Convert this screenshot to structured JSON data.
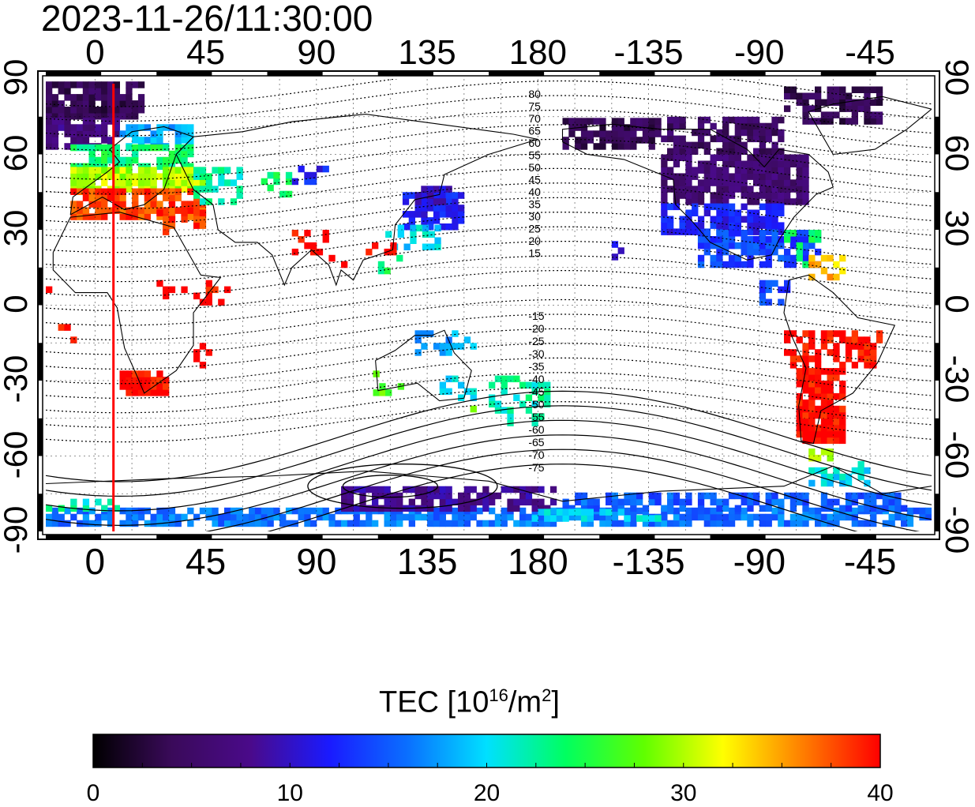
{
  "title": "2023-11-26/11:30:00",
  "map": {
    "lon_ticks_top": [
      "0",
      "45",
      "90",
      "135",
      "180",
      "-135",
      "-90",
      "-45"
    ],
    "lon_ticks_bottom": [
      "0",
      "45",
      "90",
      "135",
      "180",
      "-135",
      "-90",
      "-45"
    ],
    "lat_ticks_left": [
      "90",
      "60",
      "30",
      "0",
      "-30",
      "-60",
      "-90"
    ],
    "lat_ticks_right": [
      "90",
      "60",
      "30",
      "0",
      "-30",
      "-60",
      "-90"
    ],
    "lon_range": [
      -20,
      340
    ],
    "lat_range": [
      -90,
      90
    ],
    "grid": true,
    "subsolar_meridian_lon": 7.5,
    "contour_labels": [
      "80",
      "75",
      "70",
      "65",
      "60",
      "55",
      "50",
      "45",
      "40",
      "35",
      "30",
      "25",
      "20",
      "15",
      "-15",
      "-20",
      "-25",
      "-30",
      "-35",
      "-40",
      "-45",
      "-50",
      "-55",
      "-60",
      "-65",
      "-70",
      "-75"
    ],
    "colors": {
      "meridian": "#ff0000",
      "contour": "#000000",
      "coast": "#000000"
    }
  },
  "colorbar": {
    "title_main": "TEC  [10",
    "title_sup1": "16",
    "title_mid": "/m",
    "title_sup2": "2",
    "title_end": "]",
    "min": 0,
    "max": 40,
    "ticks": [
      "0",
      "10",
      "20",
      "30",
      "40"
    ],
    "palette": [
      "#000000",
      "#3a0a5a",
      "#4a0a8a",
      "#1a1aff",
      "#0a70ff",
      "#00e0ff",
      "#00ff60",
      "#60ff00",
      "#ffff00",
      "#ff8000",
      "#ff0000"
    ]
  }
}
